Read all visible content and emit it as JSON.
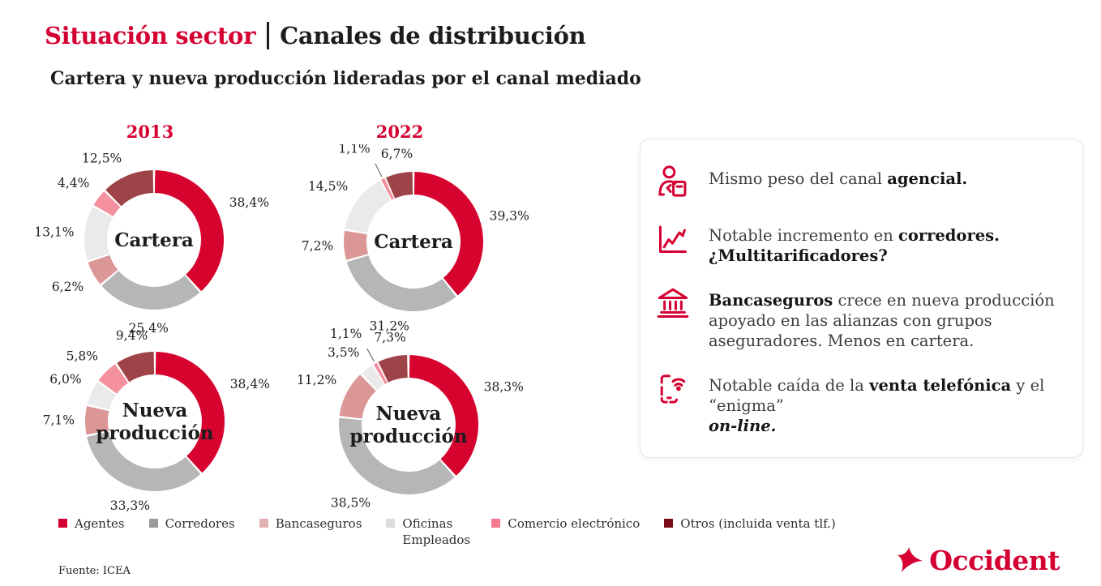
{
  "header": {
    "title_red": "Situación sector",
    "title_dark": "Canales de distribución",
    "subtitle": "Cartera y nueva producción lideradas por el canal mediado"
  },
  "years": [
    "2013",
    "2022"
  ],
  "colors": {
    "brand_red": "#d50032",
    "text_dark": "#1d1d1b",
    "text_body": "#3d3d3c"
  },
  "palette": {
    "slice_colors": [
      "#d6032f",
      "#b7b6b6",
      "#db9795",
      "#ebeaea",
      "#f5909f",
      "#9e4347"
    ],
    "legend_colors": [
      "#d50032",
      "#9b9b9b",
      "#e2b0ae",
      "#dcdcdc",
      "#f5798f",
      "#7a0c1a"
    ]
  },
  "chart_data": [
    {
      "type": "pie",
      "subtype": "donut",
      "year": "2013",
      "center_label": "Cartera",
      "categories": [
        "Agentes",
        "Corredores",
        "Bancaseguros",
        "Oficinas Empleados",
        "Comercio electrónico",
        "Otros (incluida venta tlf.)"
      ],
      "values": [
        38.4,
        25.4,
        6.2,
        13.1,
        4.4,
        12.5
      ],
      "labels": [
        "38,4%",
        "25,4%",
        "6,2%",
        "13,1%",
        "4,4%",
        "12,5%"
      ],
      "start_angle_deg": 0,
      "direction": "clockwise",
      "legend_position": "bottom"
    },
    {
      "type": "pie",
      "subtype": "donut",
      "year": "2022",
      "center_label": "Cartera",
      "categories": [
        "Agentes",
        "Corredores",
        "Bancaseguros",
        "Oficinas Empleados",
        "Comercio electrónico",
        "Otros (incluida venta tlf.)"
      ],
      "values": [
        39.3,
        31.2,
        7.2,
        14.5,
        1.1,
        6.7
      ],
      "labels": [
        "39,3%",
        "31,2%",
        "7,2%",
        "14,5%",
        "1,1%",
        "6,7%"
      ],
      "start_angle_deg": 0,
      "direction": "clockwise",
      "legend_position": "bottom"
    },
    {
      "type": "pie",
      "subtype": "donut",
      "year": "2013",
      "center_label": "Nueva\nproducción",
      "categories": [
        "Agentes",
        "Corredores",
        "Bancaseguros",
        "Oficinas Empleados",
        "Comercio electrónico",
        "Otros (incluida venta tlf.)"
      ],
      "values": [
        38.4,
        33.3,
        7.1,
        6.0,
        5.8,
        9.4
      ],
      "labels": [
        "38,4%",
        "33,3%",
        "7,1%",
        "6,0%",
        "5,8%",
        "9,4%"
      ],
      "start_angle_deg": 0,
      "direction": "clockwise",
      "legend_position": "bottom"
    },
    {
      "type": "pie",
      "subtype": "donut",
      "year": "2022",
      "center_label": "Nueva\nproducción",
      "categories": [
        "Agentes",
        "Corredores",
        "Bancaseguros",
        "Oficinas Empleados",
        "Comercio electrónico",
        "Otros (incluida venta tlf.)"
      ],
      "values": [
        38.3,
        38.5,
        11.2,
        3.5,
        1.1,
        7.3
      ],
      "labels": [
        "38,3%",
        "38,5%",
        "11,2%",
        "3,5%",
        "1,1%",
        "7,3%"
      ],
      "start_angle_deg": 0,
      "direction": "clockwise",
      "legend_position": "bottom"
    }
  ],
  "legend": {
    "items": [
      {
        "label": "Agentes",
        "color": "#d50032"
      },
      {
        "label": "Corredores",
        "color": "#9b9b9b"
      },
      {
        "label": "Bancaseguros",
        "color": "#e2b0ae"
      },
      {
        "label": "Oficinas Empleados",
        "color": "#dcdcdc",
        "max_width": 80
      },
      {
        "label": "Comercio electrónico",
        "color": "#f5798f"
      },
      {
        "label": "Otros (incluida venta tlf.)",
        "color": "#7a0c1a"
      }
    ]
  },
  "insights": {
    "items": [
      {
        "icon": "agent-icon",
        "segments": [
          {
            "t": "Mismo peso del canal ",
            "b": false
          },
          {
            "t": "agencial.",
            "b": true
          }
        ]
      },
      {
        "icon": "chart-up-icon",
        "segments": [
          {
            "t": "Notable incremento en ",
            "b": false
          },
          {
            "t": "corredores.",
            "b": true
          },
          {
            "br": true
          },
          {
            "t": "¿Multitarificadores?",
            "b": true
          }
        ]
      },
      {
        "icon": "bank-icon",
        "segments": [
          {
            "t": "Bancaseguros",
            "b": true
          },
          {
            "t": " crece en nueva producción apoyado en las alianzas con grupos aseguradores. Menos en cartera.",
            "b": false
          }
        ]
      },
      {
        "icon": "phone-wifi-icon",
        "segments": [
          {
            "t": "Notable caída de la ",
            "b": false
          },
          {
            "t": "venta telefónica",
            "b": true
          },
          {
            "t": " y el “enigma” ",
            "b": false
          },
          {
            "br": true
          },
          {
            "t": "on-line.",
            "b": true,
            "i": true
          }
        ]
      }
    ]
  },
  "footer": {
    "source": "Fuente: ICEA",
    "logo_text": "Occident"
  }
}
